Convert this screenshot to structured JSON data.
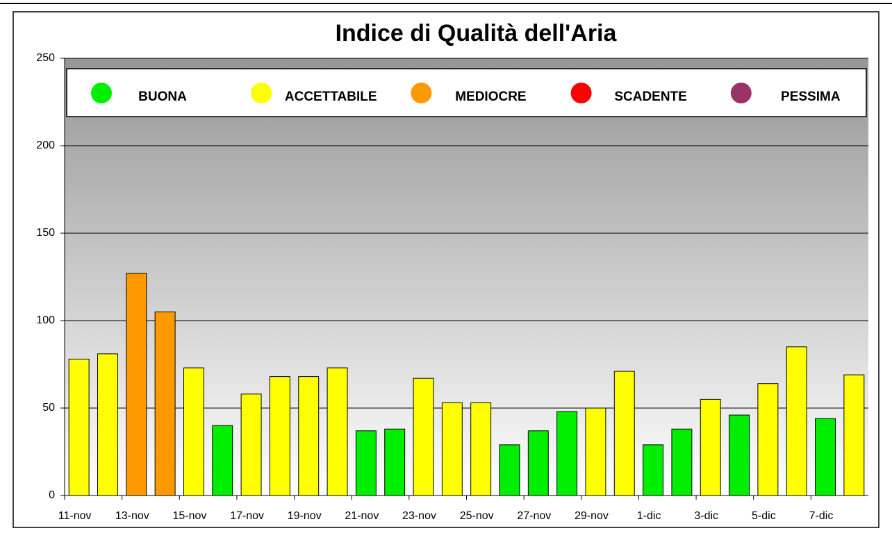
{
  "chart_data": {
    "type": "bar",
    "title": "Indice di Qualità dell'Aria",
    "categories": [
      "11-nov",
      null,
      "13-nov",
      null,
      "15-nov",
      null,
      "17-nov",
      null,
      "19-nov",
      null,
      "21-nov",
      null,
      "23-nov",
      null,
      "25-nov",
      null,
      "27-nov",
      null,
      "29-nov",
      null,
      "1-dic",
      null,
      "3-dic",
      null,
      "5-dic",
      null,
      "7-dic",
      null
    ],
    "values": [
      78,
      81,
      127,
      105,
      73,
      40,
      58,
      68,
      68,
      73,
      37,
      38,
      67,
      53,
      53,
      29,
      37,
      48,
      50,
      71,
      29,
      38,
      55,
      46,
      64,
      85,
      44,
      69
    ],
    "colors": [
      "#ffff00",
      "#ffff00",
      "#ff9900",
      "#ff9900",
      "#ffff00",
      "#00ee00",
      "#ffff00",
      "#ffff00",
      "#ffff00",
      "#ffff00",
      "#00ee00",
      "#00ee00",
      "#ffff00",
      "#ffff00",
      "#ffff00",
      "#00ee00",
      "#00ee00",
      "#00ee00",
      "#ffff00",
      "#ffff00",
      "#00ee00",
      "#00ee00",
      "#ffff00",
      "#00ee00",
      "#ffff00",
      "#ffff00",
      "#00ee00",
      "#ffff00"
    ],
    "legend": [
      {
        "name": "BUONA",
        "color": "#00ee00"
      },
      {
        "name": "ACCETTABILE",
        "color": "#ffff00"
      },
      {
        "name": "MEDIOCRE",
        "color": "#ff9900"
      },
      {
        "name": "SCADENTE",
        "color": "#ff0000"
      },
      {
        "name": "PESSIMA",
        "color": "#993366"
      }
    ],
    "ylim": [
      0,
      250
    ],
    "yticks": [
      0,
      50,
      100,
      150,
      200,
      250
    ],
    "grid": true
  }
}
